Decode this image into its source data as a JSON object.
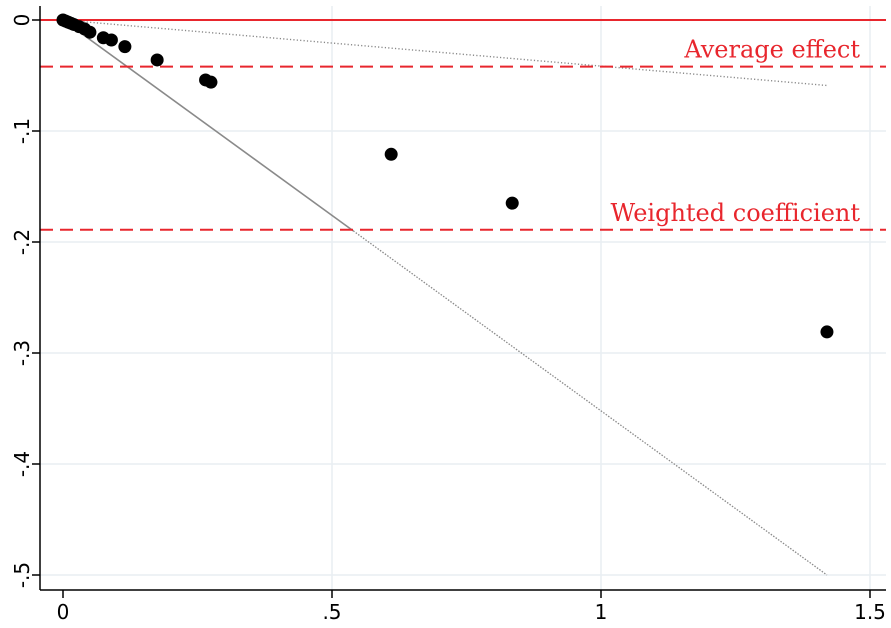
{
  "chart_data": {
    "type": "scatter",
    "title": "",
    "xlabel": "",
    "ylabel": "",
    "xlim": [
      0,
      1.5
    ],
    "ylim": [
      -0.5,
      0
    ],
    "grid": true,
    "legend": "none",
    "x_ticks": [
      {
        "value": 0,
        "label": "0"
      },
      {
        "value": 0.5,
        "label": ".5"
      },
      {
        "value": 1,
        "label": "1"
      },
      {
        "value": 1.5,
        "label": "1.5"
      }
    ],
    "y_ticks": [
      {
        "value": 0,
        "label": "0"
      },
      {
        "value": -0.1,
        "label": "-.1"
      },
      {
        "value": -0.2,
        "label": "-.2"
      },
      {
        "value": -0.3,
        "label": "-.3"
      },
      {
        "value": -0.4,
        "label": "-.4"
      },
      {
        "value": -0.5,
        "label": "-.5"
      }
    ],
    "points": [
      {
        "x": 0.0,
        "y": 0.0
      },
      {
        "x": 0.005,
        "y": -0.001
      },
      {
        "x": 0.01,
        "y": -0.002
      },
      {
        "x": 0.015,
        "y": -0.003
      },
      {
        "x": 0.02,
        "y": -0.004
      },
      {
        "x": 0.03,
        "y": -0.006
      },
      {
        "x": 0.04,
        "y": -0.008
      },
      {
        "x": 0.05,
        "y": -0.011
      },
      {
        "x": 0.075,
        "y": -0.016
      },
      {
        "x": 0.09,
        "y": -0.018
      },
      {
        "x": 0.115,
        "y": -0.024
      },
      {
        "x": 0.175,
        "y": -0.036
      },
      {
        "x": 0.265,
        "y": -0.054
      },
      {
        "x": 0.275,
        "y": -0.056
      },
      {
        "x": 0.61,
        "y": -0.121
      },
      {
        "x": 0.835,
        "y": -0.165
      },
      {
        "x": 1.42,
        "y": -0.281
      }
    ],
    "reference_lines": [
      {
        "y": 0,
        "style": "solid",
        "color": "#e8262d",
        "label": ""
      },
      {
        "y": -0.042,
        "style": "dashed",
        "color": "#e8262d",
        "label": "Average effect"
      },
      {
        "y": -0.189,
        "style": "dashed",
        "color": "#e8262d",
        "label": "Weighted coefficient"
      }
    ],
    "fan_lines": [
      {
        "x1": 0,
        "y1": 0,
        "x2": 1.42,
        "y2": -0.059,
        "style": "dotted",
        "color": "#888888"
      },
      {
        "x1": 0,
        "y1": 0,
        "x2": 1.42,
        "y2": -0.5,
        "style": "solid-to-dotted",
        "color": "#8a8a8a"
      }
    ],
    "colors": {
      "points": "#000000",
      "grid": "#e9eef2",
      "reference": "#e8262d"
    }
  }
}
